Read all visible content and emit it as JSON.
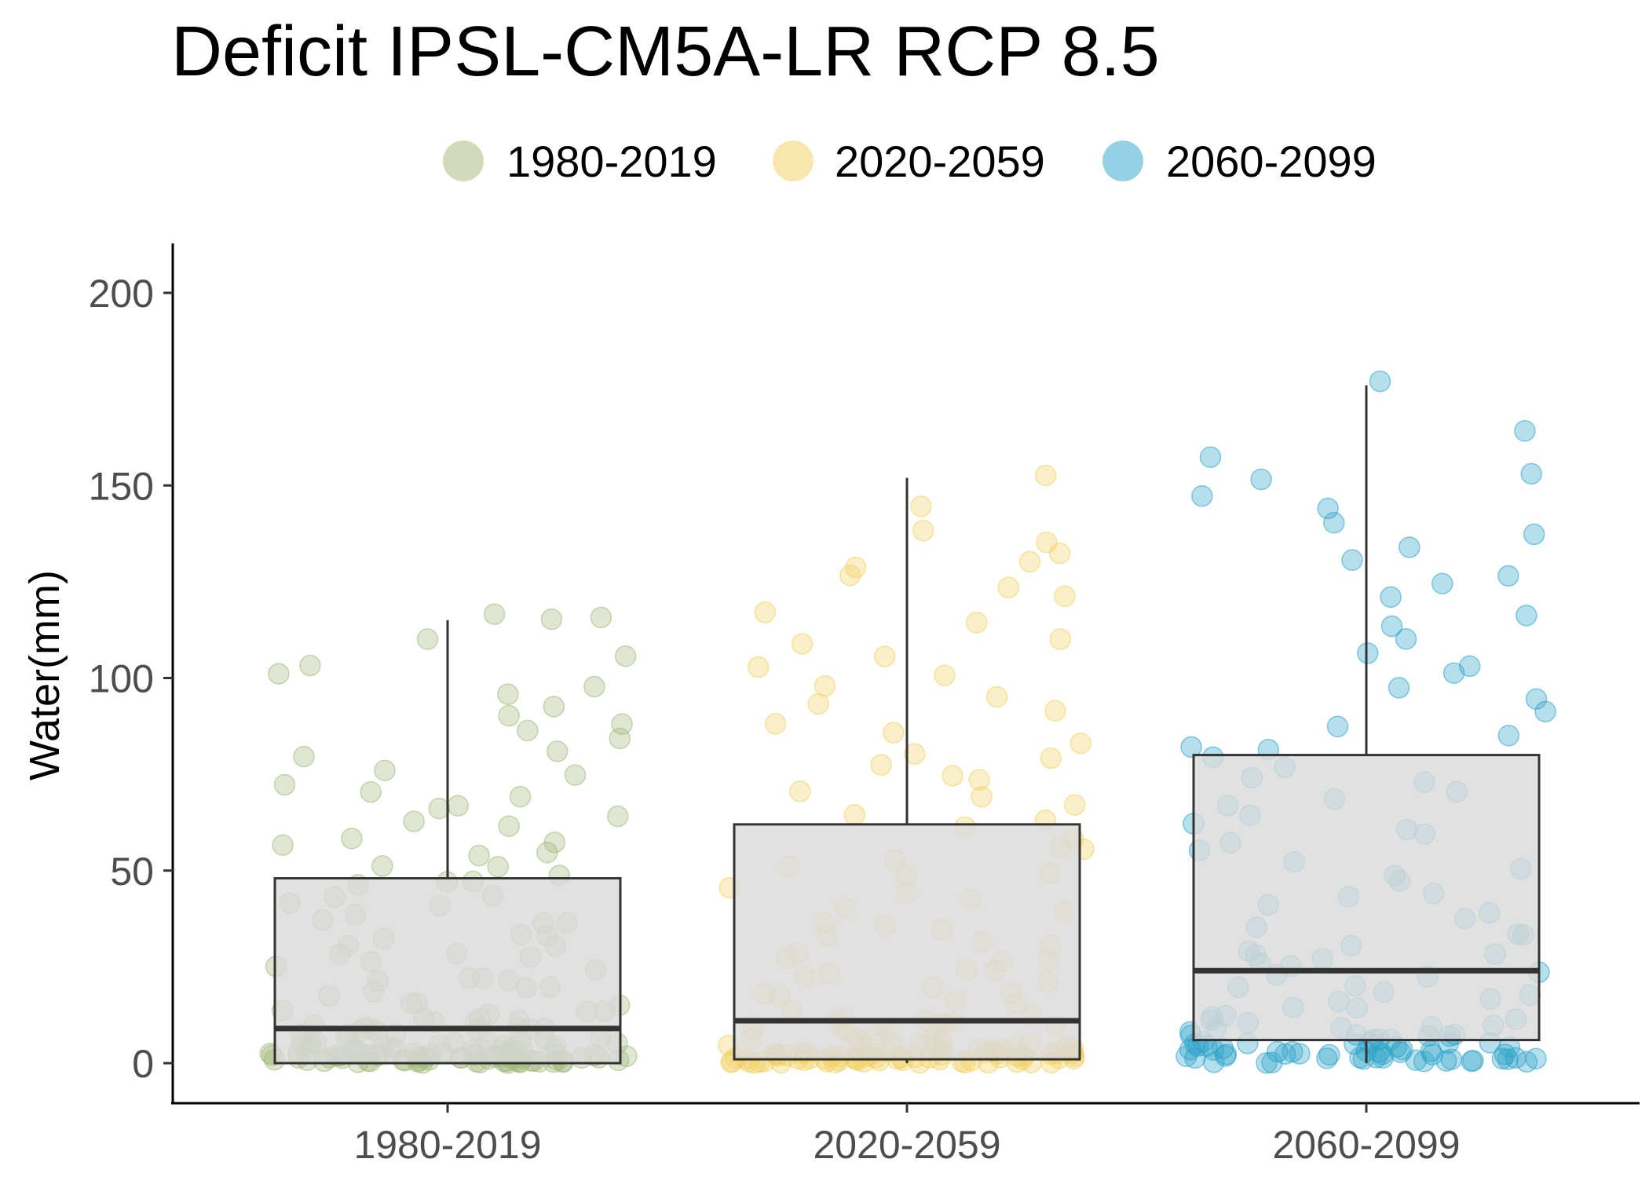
{
  "chart_data": {
    "type": "boxplot",
    "title": "Deficit IPSL-CM5A-LR RCP 8.5",
    "xlabel": "",
    "ylabel": "Water(mm)",
    "ylim": [
      -10,
      212
    ],
    "yticks": [
      0,
      50,
      100,
      150,
      200
    ],
    "categories": [
      "1980-2019",
      "2020-2059",
      "2060-2099"
    ],
    "legend": {
      "position": "top",
      "entries": [
        "1980-2019",
        "2020-2059",
        "2060-2099"
      ]
    },
    "colors": [
      "#a3b87a",
      "#f0d060",
      "#2ca3c9"
    ],
    "grid": false,
    "boxes": [
      {
        "name": "1980-2019",
        "min": 0,
        "q1": 0,
        "median": 9,
        "q3": 48,
        "max": 115
      },
      {
        "name": "2020-2059",
        "min": 0,
        "q1": 1,
        "median": 11,
        "q3": 62,
        "max": 152
      },
      {
        "name": "2060-2099",
        "min": 0,
        "q1": 6,
        "median": 24,
        "q3": 80,
        "max": 176
      }
    ],
    "points": [
      {
        "name": "1980-2019",
        "values": [
          0,
          0,
          0,
          0,
          0,
          0,
          0,
          0,
          0,
          0,
          0,
          0,
          0,
          0,
          0,
          0,
          0,
          0,
          0,
          0,
          0,
          0,
          0,
          0,
          0,
          0,
          0,
          0,
          0,
          0,
          0,
          0,
          0,
          0,
          0,
          0,
          0,
          0,
          0,
          0,
          1,
          1,
          1,
          1,
          1,
          1,
          1,
          1,
          1,
          1,
          1,
          1,
          1,
          1,
          1,
          2,
          2,
          2,
          2,
          2,
          2,
          2,
          2,
          2,
          2,
          3,
          3,
          3,
          3,
          3,
          3,
          3,
          3,
          4,
          4,
          4,
          4,
          4,
          4,
          5,
          5,
          5,
          5,
          5,
          6,
          6,
          6,
          6,
          7,
          7,
          7,
          7,
          8,
          8,
          8,
          9,
          9,
          9,
          10,
          10,
          10,
          11,
          11,
          12,
          12,
          13,
          13,
          14,
          15,
          15,
          16,
          17,
          18,
          19,
          20,
          20,
          21,
          22,
          23,
          24,
          25,
          26,
          27,
          28,
          29,
          30,
          31,
          32,
          33,
          35,
          36,
          37,
          38,
          40,
          41,
          42,
          43,
          45,
          46,
          47,
          48,
          50,
          51,
          53,
          54,
          55,
          56,
          58,
          60,
          62,
          63,
          65,
          66,
          68,
          70,
          72,
          74,
          76,
          78,
          80,
          83,
          85,
          87,
          90,
          92,
          95,
          97,
          100,
          103,
          105,
          110,
          115,
          115,
          114
        ]
      },
      {
        "name": "2020-2059",
        "values": [
          0,
          0,
          0,
          0,
          0,
          0,
          0,
          0,
          0,
          0,
          0,
          0,
          0,
          0,
          0,
          0,
          0,
          0,
          0,
          0,
          0,
          0,
          0,
          0,
          0,
          0,
          0,
          0,
          0,
          0,
          0,
          0,
          0,
          0,
          0,
          0,
          0,
          0,
          1,
          1,
          1,
          1,
          1,
          1,
          1,
          1,
          1,
          1,
          1,
          1,
          1,
          1,
          2,
          2,
          2,
          2,
          2,
          2,
          2,
          2,
          2,
          3,
          3,
          3,
          3,
          3,
          3,
          4,
          4,
          4,
          4,
          4,
          5,
          5,
          5,
          5,
          6,
          6,
          6,
          7,
          7,
          7,
          8,
          8,
          9,
          9,
          10,
          10,
          11,
          11,
          12,
          13,
          14,
          15,
          16,
          17,
          18,
          19,
          20,
          21,
          22,
          23,
          24,
          25,
          26,
          27,
          28,
          30,
          31,
          32,
          34,
          35,
          36,
          38,
          40,
          41,
          43,
          45,
          47,
          48,
          50,
          52,
          54,
          56,
          58,
          60,
          62,
          64,
          66,
          68,
          70,
          72,
          74,
          76,
          78,
          80,
          82,
          85,
          87,
          90,
          92,
          95,
          97,
          100,
          102,
          105,
          108,
          110,
          113,
          116,
          120,
          123,
          126,
          128,
          130,
          132,
          134,
          137,
          143,
          152
        ]
      },
      {
        "name": "2060-2099",
        "values": [
          0,
          0,
          0,
          0,
          0,
          0,
          0,
          0,
          0,
          0,
          0,
          0,
          0,
          0,
          1,
          1,
          1,
          1,
          1,
          1,
          1,
          1,
          1,
          1,
          1,
          1,
          2,
          2,
          2,
          2,
          2,
          2,
          2,
          2,
          2,
          3,
          3,
          3,
          3,
          3,
          3,
          3,
          4,
          4,
          4,
          4,
          4,
          5,
          5,
          5,
          5,
          6,
          6,
          6,
          6,
          7,
          7,
          7,
          8,
          8,
          8,
          9,
          9,
          10,
          10,
          11,
          11,
          12,
          13,
          14,
          15,
          16,
          17,
          18,
          19,
          20,
          21,
          22,
          23,
          24,
          25,
          26,
          27,
          28,
          29,
          30,
          32,
          33,
          35,
          36,
          38,
          40,
          42,
          44,
          46,
          48,
          50,
          52,
          54,
          56,
          58,
          60,
          62,
          64,
          66,
          68,
          70,
          72,
          74,
          76,
          78,
          80,
          82,
          84,
          87,
          90,
          93,
          96,
          100,
          103,
          106,
          110,
          113,
          116,
          120,
          123,
          126,
          130,
          133,
          136,
          140,
          143,
          146,
          150,
          152,
          156,
          164,
          176
        ]
      }
    ]
  }
}
